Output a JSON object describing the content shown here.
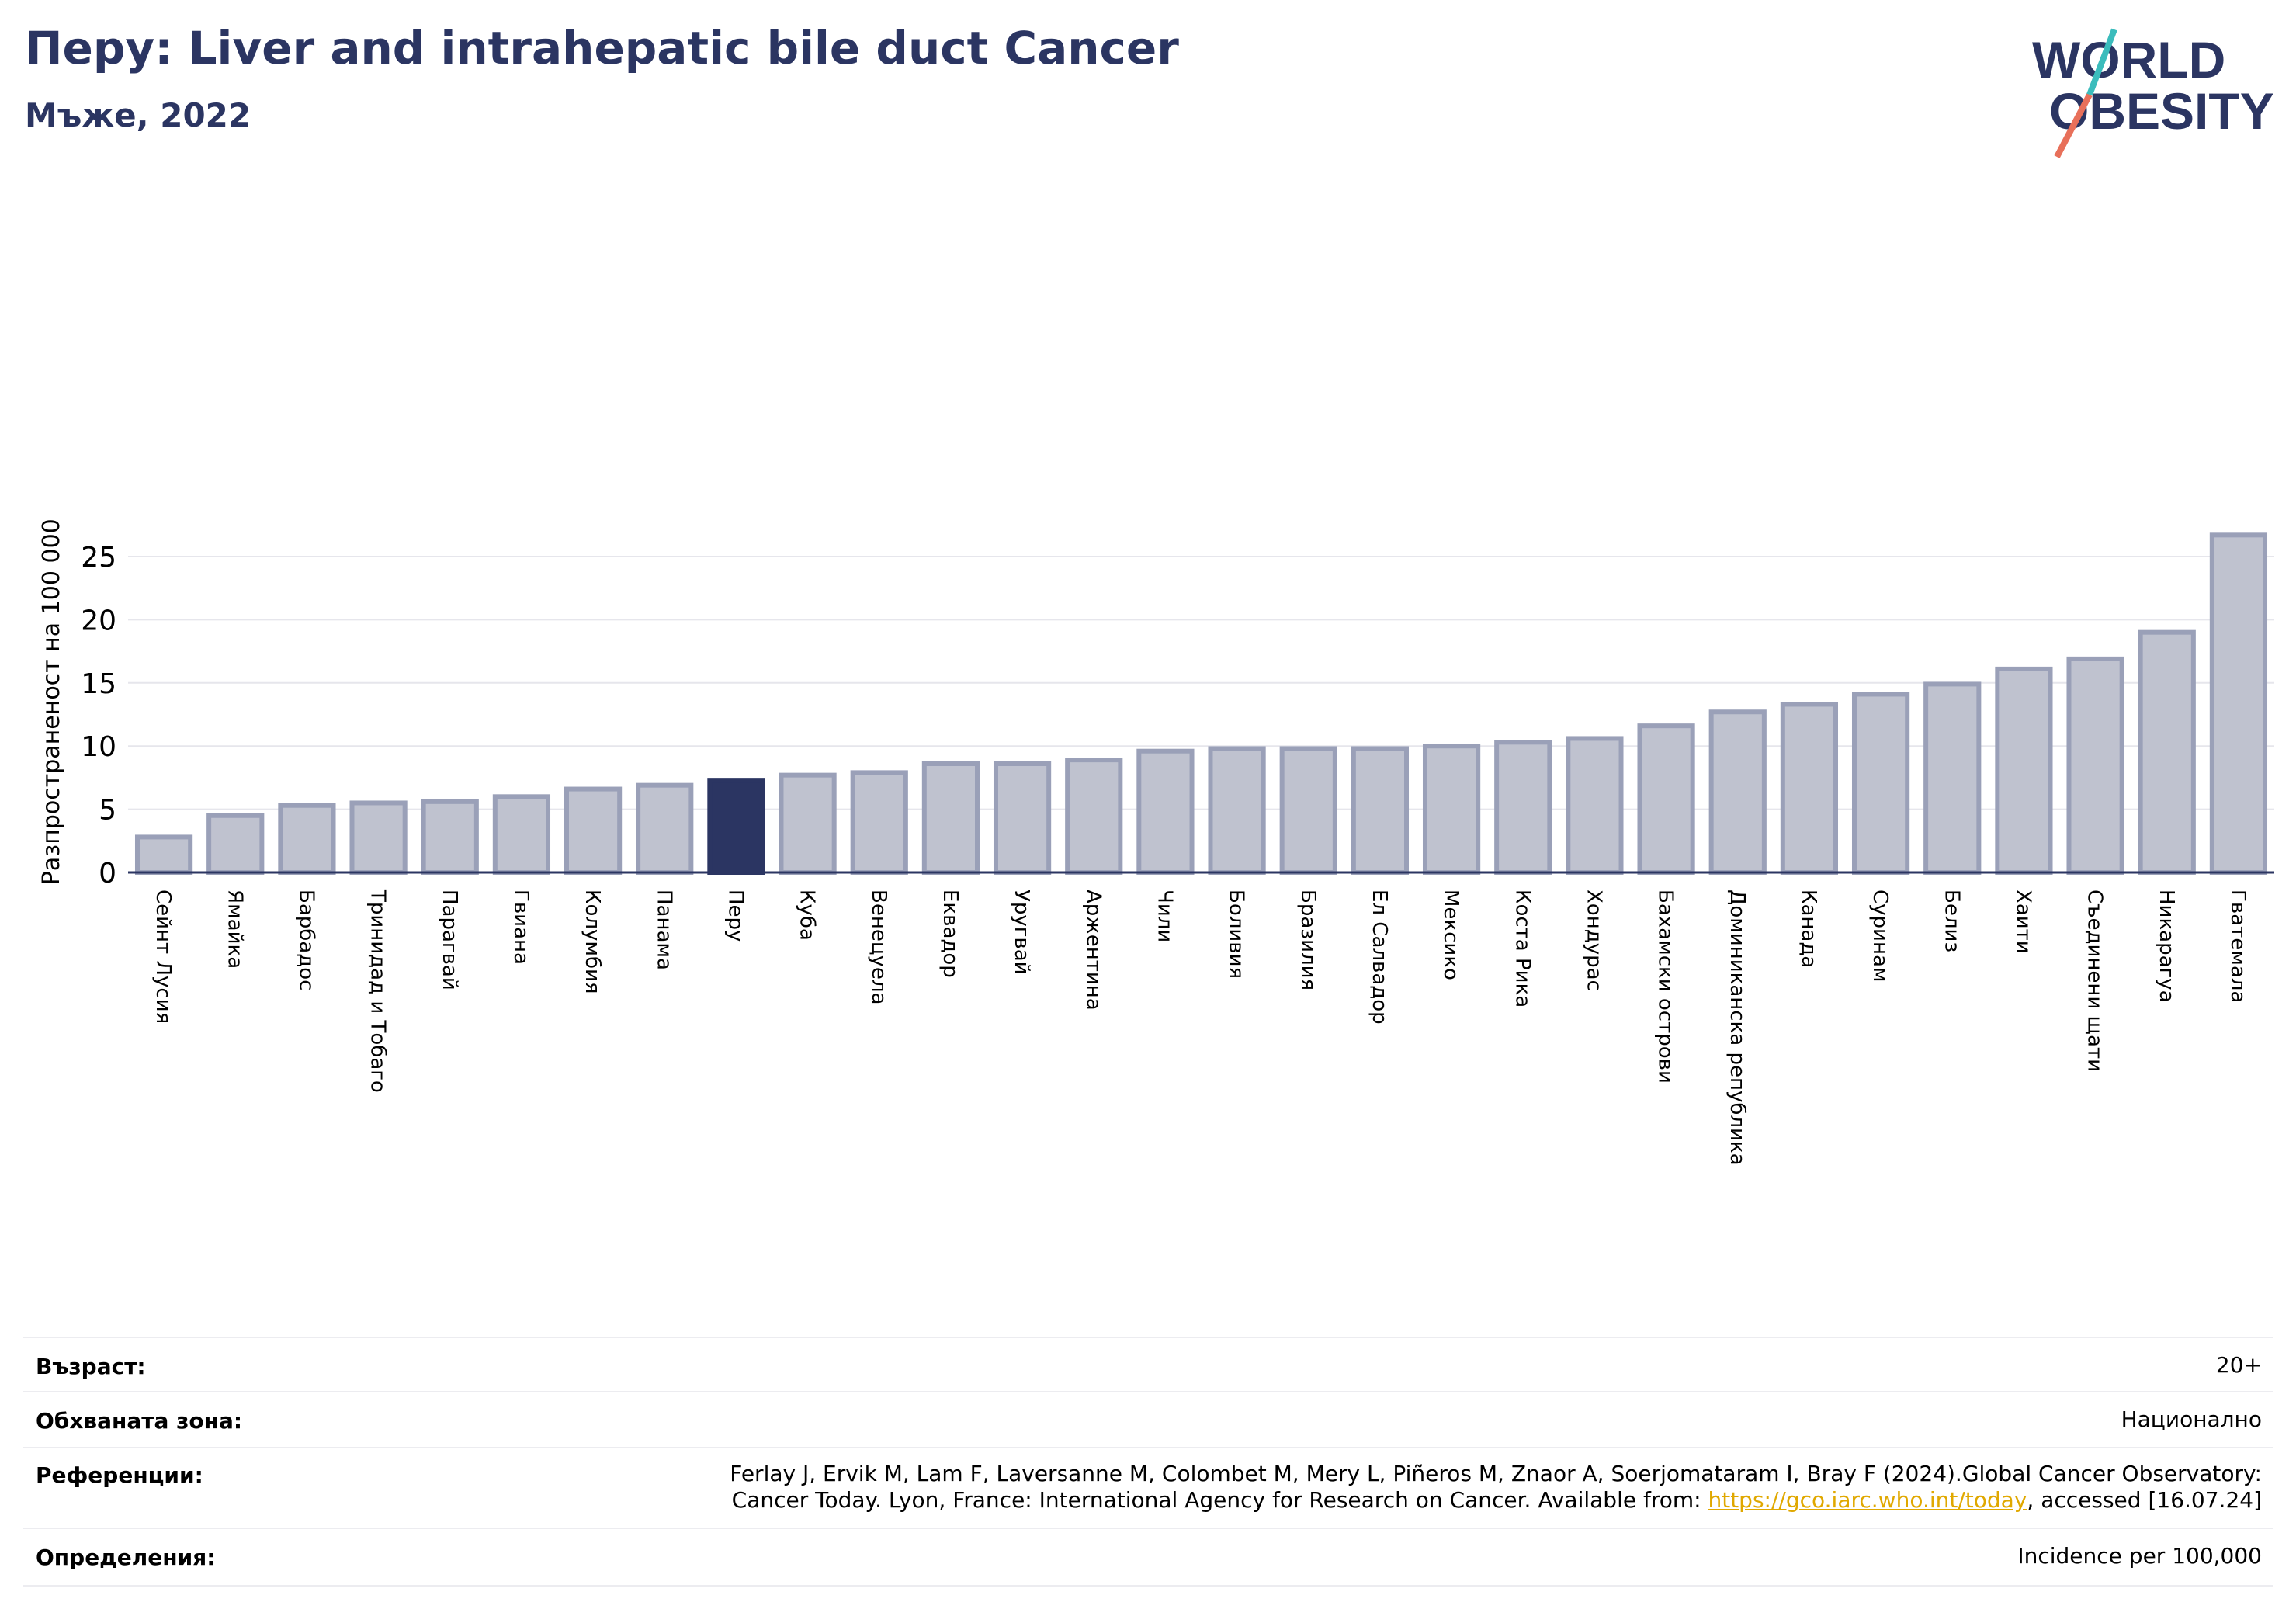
{
  "header": {
    "title": "Перу: Liver and intrahepatic bile duct Cancer",
    "subtitle": "Мъже, 2022"
  },
  "logo": {
    "line1": "WORLD",
    "line2": "OBESITY"
  },
  "colors": {
    "bar": "#bfc2cf",
    "bar_edge": "#9aa0b8",
    "highlight": "#2b3562",
    "text_dark": "#2b3562"
  },
  "chart_data": {
    "type": "bar",
    "title": "Перу: Liver and intrahepatic bile duct Cancer",
    "subtitle": "Мъже, 2022",
    "ylabel": "Разпространеност  на 100 000",
    "xlabel": "",
    "ylim": [
      0,
      27
    ],
    "yticks": [
      0,
      5,
      10,
      15,
      20,
      25
    ],
    "grid": true,
    "highlight": "Перу",
    "categories": [
      "Сейнт Лусия",
      "Ямайка",
      "Барбадос",
      "Тринидад и Тобаго",
      "Парагвай",
      "Гвиана",
      "Колумбия",
      "Панама",
      "Перу",
      "Куба",
      "Венецуела",
      "Еквадор",
      "Уругвай",
      "Аржентина",
      "Чили",
      "Боливия",
      "Бразилия",
      "Ел Салвадор",
      "Мексико",
      "Коста Рика",
      "Хондурас",
      "Бахамски острови",
      "Доминиканска република",
      "Канада",
      "Суринам",
      "Белиз",
      "Хаити",
      "Съединени щати",
      "Никарагуа",
      "Гватемала"
    ],
    "values": [
      2.8,
      4.5,
      5.3,
      5.5,
      5.6,
      6.0,
      6.6,
      6.9,
      7.3,
      7.7,
      7.9,
      8.6,
      8.6,
      8.9,
      9.6,
      9.8,
      9.8,
      9.8,
      10.0,
      10.3,
      10.6,
      11.6,
      12.7,
      13.3,
      14.1,
      14.9,
      16.1,
      16.9,
      19.0,
      26.7
    ]
  },
  "meta": {
    "age_label": "Възраст:",
    "age_value": "20+",
    "area_label": "Обхваната зона:",
    "area_value": "Национално",
    "ref_label": "Референции:",
    "ref_line1": "Ferlay J, Ervik M, Lam F, Laversanne M, Colombet M, Mery L, Piñeros M, Znaor A, Soerjomataram I, Bray F (2024).Global Cancer Observatory:",
    "ref_line2_pre": "Cancer Today. Lyon, France: International Agency for Research on Cancer. Available from: ",
    "ref_link": "https://gco.iarc.who.int/today",
    "ref_line2_post": ", accessed [16.07.24]",
    "def_label": "Определения:",
    "def_value": "Incidence per 100,000"
  }
}
